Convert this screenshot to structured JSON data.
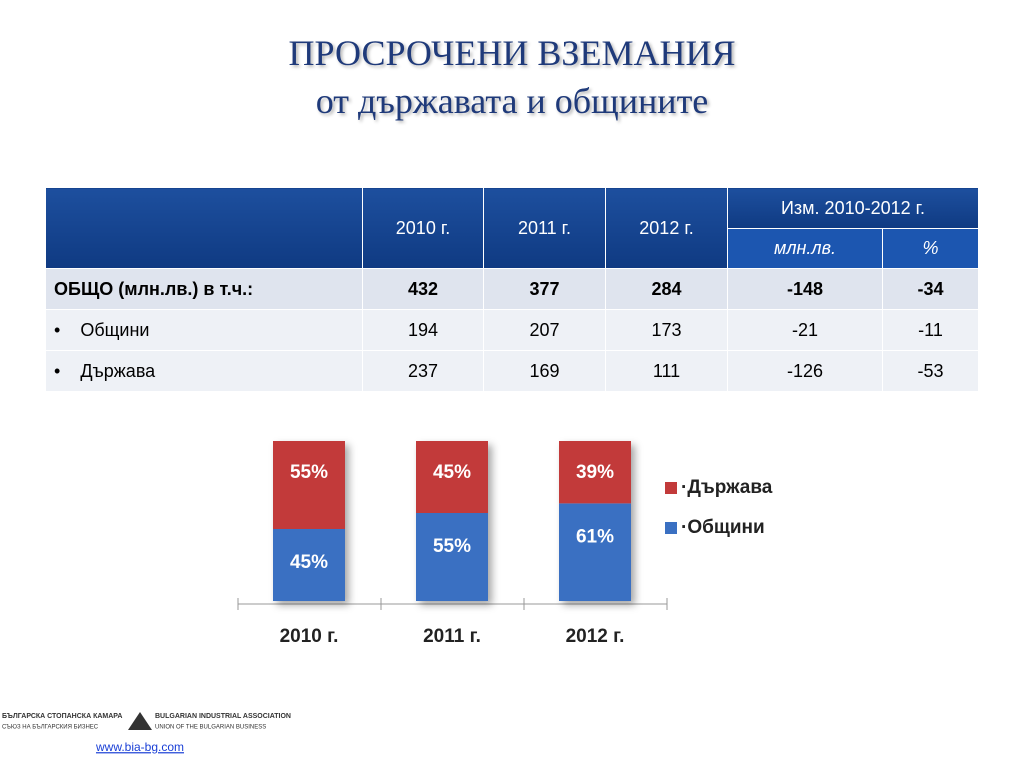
{
  "header": {
    "title": "ПРОСРОЧЕНИ ВЗЕМАНИЯ",
    "subtitle": "от държавата и общините"
  },
  "table": {
    "header": [
      "2010 г.",
      "2011 г.",
      "2012 г.",
      "Изм. 2010-2012 г."
    ],
    "subheader": [
      "млн.лв.",
      "%"
    ],
    "rows": [
      [
        "ОБЩО (млн.лв.) в т.ч.:",
        432,
        377,
        284,
        -148,
        -34
      ],
      [
        "Общини",
        194,
        207,
        173,
        -21,
        -11
      ],
      [
        "Държава",
        237,
        169,
        111,
        -126,
        -53
      ]
    ]
  },
  "chart_data": {
    "type": "bar",
    "stacked": true,
    "categories": [
      "2010 г.",
      "2011 г.",
      "2012 г."
    ],
    "series": [
      {
        "name": "·Общини",
        "color": "#3a70c2",
        "values": [
          45,
          55,
          61
        ],
        "value_labels": [
          "45%",
          "55%",
          "61%"
        ]
      },
      {
        "name": "·Държава",
        "color": "#c23a3a",
        "values": [
          55,
          45,
          39
        ],
        "value_labels": [
          "55%",
          "45%",
          "39%"
        ]
      }
    ],
    "ylim": [
      0,
      100
    ]
  },
  "footer": {
    "logo": [
      "БЪЛГАРСКА СТОПАНСКА КАМАРА",
      "СЪЮЗ НА БЪЛГАРСКИЯ БИЗНЕС",
      "BULGARIAN INDUSTRIAL ASSOCIATION",
      "UNION OF THE BULGARIAN BUSINESS"
    ],
    "url": "www.bia-bg.com"
  }
}
